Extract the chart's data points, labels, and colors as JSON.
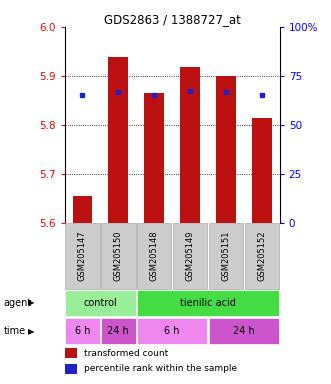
{
  "title": "GDS2863 / 1388727_at",
  "samples": [
    "GSM205147",
    "GSM205150",
    "GSM205148",
    "GSM205149",
    "GSM205151",
    "GSM205152"
  ],
  "bar_values": [
    5.655,
    5.938,
    5.865,
    5.918,
    5.9,
    5.815
  ],
  "bar_bottom": 5.6,
  "percentile_values": [
    5.862,
    5.868,
    5.862,
    5.87,
    5.867,
    5.862
  ],
  "ylim": [
    5.6,
    6.0
  ],
  "y2lim": [
    0,
    100
  ],
  "yticks": [
    5.6,
    5.7,
    5.8,
    5.9,
    6.0
  ],
  "y2ticks": [
    0,
    25,
    50,
    75,
    100
  ],
  "y2ticklabels": [
    "0",
    "25",
    "50",
    "75",
    "100%"
  ],
  "bar_color": "#bb1111",
  "dot_color": "#2222cc",
  "agent_labels": [
    {
      "text": "control",
      "span": [
        0,
        2
      ],
      "color": "#99ee99"
    },
    {
      "text": "tienilic acid",
      "span": [
        2,
        6
      ],
      "color": "#44dd44"
    }
  ],
  "time_labels": [
    {
      "text": "6 h",
      "span": [
        0,
        1
      ],
      "color": "#ee88ee"
    },
    {
      "text": "24 h",
      "span": [
        1,
        2
      ],
      "color": "#cc55cc"
    },
    {
      "text": "6 h",
      "span": [
        2,
        4
      ],
      "color": "#ee88ee"
    },
    {
      "text": "24 h",
      "span": [
        4,
        6
      ],
      "color": "#cc55cc"
    }
  ],
  "legend_items": [
    {
      "label": "transformed count",
      "color": "#bb1111"
    },
    {
      "label": "percentile rank within the sample",
      "color": "#2222cc"
    }
  ],
  "bar_width": 0.55,
  "sample_bg_color": "#cccccc",
  "sample_border_color": "#aaaaaa",
  "left_label_color": "#444444"
}
